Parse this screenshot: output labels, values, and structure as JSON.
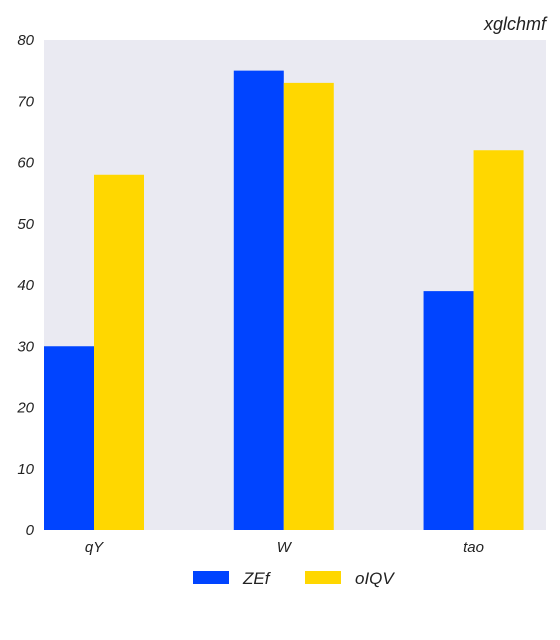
{
  "chart_data": {
    "type": "bar",
    "title": "xglchmf",
    "xlabel": "",
    "ylabel": "",
    "categories": [
      "qY",
      "W",
      "tao"
    ],
    "series": [
      {
        "name": "ZEf",
        "values": [
          30,
          75,
          39
        ],
        "color": "#0044ff"
      },
      {
        "name": "oIQV",
        "values": [
          58,
          73,
          62
        ],
        "color": "#ffd700"
      }
    ],
    "ylim": [
      0,
      80
    ],
    "yticks": [
      0,
      10,
      20,
      30,
      40,
      50,
      60,
      70,
      80
    ],
    "grid": false,
    "legend_position": "bottom",
    "plot_background": "#eaeaf2"
  }
}
